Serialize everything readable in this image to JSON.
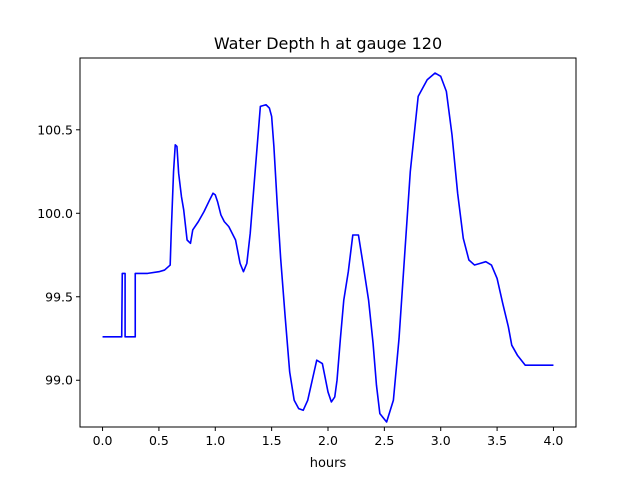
{
  "chart_data": {
    "type": "line",
    "title": "Water Depth h at gauge 120",
    "xlabel": "hours",
    "ylabel": "",
    "xlim": [
      -0.2,
      4.2
    ],
    "ylim": [
      98.72,
      100.93
    ],
    "xticks": [
      0.0,
      0.5,
      1.0,
      1.5,
      2.0,
      2.5,
      3.0,
      3.5,
      4.0
    ],
    "xtick_labels": [
      "0.0",
      "0.5",
      "1.0",
      "1.5",
      "2.0",
      "2.5",
      "3.0",
      "3.5",
      "4.0"
    ],
    "yticks": [
      99.0,
      99.5,
      100.0,
      100.5
    ],
    "ytick_labels": [
      "99.0",
      "99.5",
      "100.0",
      "100.5"
    ],
    "grid": false,
    "series": [
      {
        "color": "#0000ff",
        "x": [
          0.0,
          0.17,
          0.17,
          0.175,
          0.178,
          0.2,
          0.2,
          0.29,
          0.29,
          0.4,
          0.5,
          0.55,
          0.6,
          0.61,
          0.63,
          0.645,
          0.66,
          0.675,
          0.7,
          0.72,
          0.75,
          0.78,
          0.8,
          0.85,
          0.9,
          0.95,
          0.98,
          1.0,
          1.02,
          1.05,
          1.08,
          1.12,
          1.18,
          1.22,
          1.25,
          1.28,
          1.31,
          1.35,
          1.4,
          1.45,
          1.48,
          1.5,
          1.52,
          1.55,
          1.58,
          1.62,
          1.66,
          1.7,
          1.74,
          1.78,
          1.82,
          1.86,
          1.9,
          1.95,
          2.0,
          2.03,
          2.06,
          2.08,
          2.11,
          2.14,
          2.18,
          2.22,
          2.27,
          2.31,
          2.36,
          2.4,
          2.43,
          2.46,
          2.52,
          2.58,
          2.63,
          2.68,
          2.73,
          2.8,
          2.88,
          2.95,
          3.0,
          3.05,
          3.1,
          3.15,
          3.2,
          3.25,
          3.3,
          3.35,
          3.4,
          3.45,
          3.5,
          3.55,
          3.6,
          3.63,
          3.68,
          3.75,
          3.8,
          3.85,
          3.9,
          3.95,
          4.0
        ],
        "y": [
          99.26,
          99.26,
          99.26,
          99.64,
          99.64,
          99.64,
          99.26,
          99.26,
          99.64,
          99.64,
          99.65,
          99.66,
          99.69,
          99.9,
          100.25,
          100.41,
          100.4,
          100.24,
          100.1,
          100.02,
          99.84,
          99.82,
          99.9,
          99.95,
          100.01,
          100.08,
          100.12,
          100.11,
          100.07,
          99.99,
          99.95,
          99.92,
          99.84,
          99.7,
          99.65,
          99.7,
          99.88,
          100.22,
          100.64,
          100.65,
          100.63,
          100.58,
          100.4,
          100.05,
          99.73,
          99.38,
          99.05,
          98.88,
          98.83,
          98.82,
          98.88,
          99.0,
          99.12,
          99.1,
          98.93,
          98.87,
          98.9,
          99.0,
          99.25,
          99.48,
          99.65,
          99.87,
          99.87,
          99.7,
          99.48,
          99.22,
          98.97,
          98.8,
          98.75,
          98.88,
          99.25,
          99.75,
          100.25,
          100.7,
          100.8,
          100.84,
          100.82,
          100.73,
          100.47,
          100.12,
          99.85,
          99.72,
          99.69,
          99.7,
          99.71,
          99.69,
          99.61,
          99.46,
          99.32,
          99.21,
          99.15,
          99.09,
          99.09,
          99.09,
          99.09,
          99.09,
          99.09
        ]
      }
    ]
  }
}
